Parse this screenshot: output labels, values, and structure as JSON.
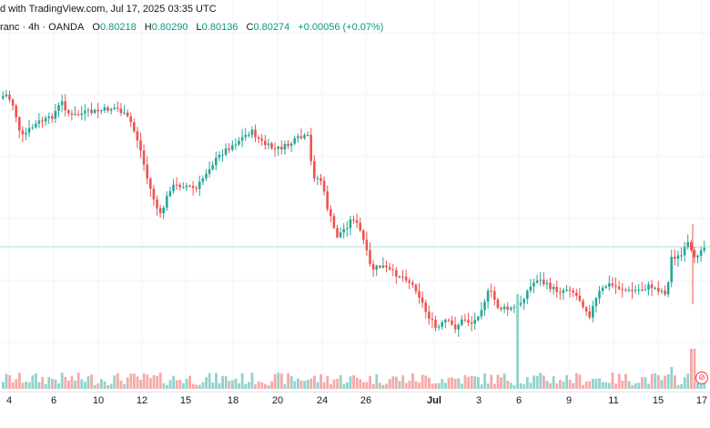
{
  "header": {
    "published_text": "d with TradingView.com, Jul 17, 2025 03:35 UTC",
    "symbol_text": "ranc · 4h · OANDA",
    "open_label": "O",
    "open_value": "0.80218",
    "high_label": "H",
    "high_value": "0.80290",
    "low_label": "L",
    "low_value": "0.80136",
    "close_label": "C",
    "close_value": "0.80274",
    "change_value": "+0.00056 (+0.07%)"
  },
  "xaxis": {
    "labels": [
      "4",
      "6",
      "10",
      "12",
      "15",
      "18",
      "20",
      "24",
      "26",
      "Jul",
      "3",
      "6",
      "9",
      "11",
      "15",
      "17"
    ]
  },
  "colors": {
    "up": "#26a69a",
    "down": "#ef5350",
    "up_volume": "#92d2cc",
    "down_volume": "#f7a9a7",
    "last_price_line": "#b2dfdb"
  },
  "logo_icon": "tradingview-logo-icon",
  "chart_data": {
    "type": "candlestick",
    "timeframe": "4h",
    "exchange": "OANDA",
    "last_candle": {
      "open": 0.80218,
      "high": 0.8029,
      "low": 0.80136,
      "close": 0.80274
    },
    "change": 0.00056,
    "change_percent": 0.07
  }
}
